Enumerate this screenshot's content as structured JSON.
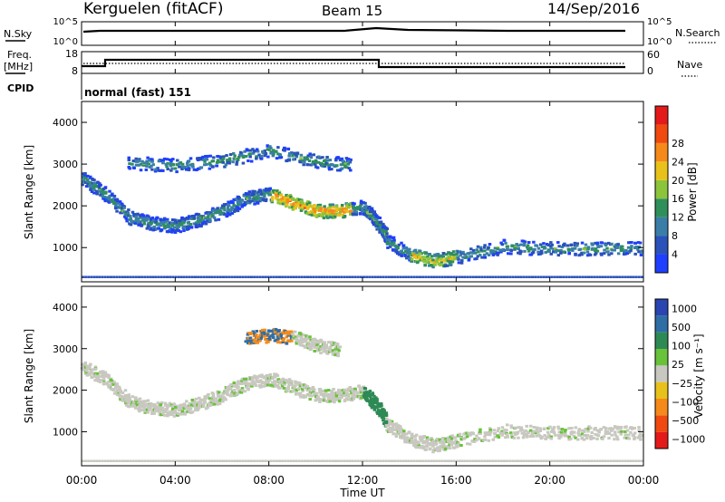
{
  "header": {
    "site": "Kerguelen (fitACF)",
    "beam": "Beam 15",
    "date": "14/Sep/2016"
  },
  "top_panels": {
    "nsky": {
      "label": "N.Sky",
      "tick_top": "10^5",
      "tick_bottom": "10^0",
      "right_label": "N.Search",
      "right_tick_top": "10^5",
      "right_tick_bottom": "10^0"
    },
    "freq": {
      "label_line1": "Freq.",
      "label_line2": "[MHz]",
      "tick_top": "18",
      "tick_bottom": "8",
      "right_label": "Nave",
      "right_tick_top": "60",
      "right_tick_bottom": "0"
    },
    "cpid": {
      "label": "CPID",
      "mode": "normal (fast) 151"
    }
  },
  "x_axis": {
    "ticks": [
      "00:00",
      "04:00",
      "08:00",
      "12:00",
      "16:00",
      "20:00",
      "00:00"
    ],
    "label": "Time UT"
  },
  "chart_data": [
    {
      "type": "heatmap",
      "ylabel": "Slant Range [km]",
      "yticks": [
        "1000",
        "2000",
        "3000",
        "4000"
      ],
      "colorbar": {
        "label": "Power [dB]",
        "ticks": [
          "4",
          "8",
          "12",
          "16",
          "20",
          "24",
          "28"
        ],
        "colors": [
          "#1f3fff",
          "#2a52b8",
          "#3a7ea8",
          "#2f8f5a",
          "#8cc43c",
          "#e8c21a",
          "#f58a1a",
          "#f04a10",
          "#e41a1a"
        ]
      },
      "bands": [
        {
          "x": [
            0.0,
            1.0,
            2.0,
            3.0,
            4.0,
            5.0,
            6.0,
            7.0,
            8.0,
            9.0,
            10.0,
            11.0,
            12.0,
            12.5,
            13.0
          ],
          "y": [
            2700,
            2300,
            1750,
            1600,
            1550,
            1700,
            1900,
            2200,
            2300,
            2100,
            1900,
            1900,
            2000,
            1700,
            1300
          ]
        },
        {
          "x": [
            2.0,
            4.0,
            6.0,
            8.0,
            10.0,
            11.5
          ],
          "y": [
            3050,
            3000,
            3100,
            3350,
            3100,
            3000
          ]
        },
        {
          "x": [
            13.0,
            14.0,
            15.0,
            16.0,
            18.0,
            20.0,
            22.0,
            24.0
          ],
          "y": [
            1200,
            850,
            700,
            800,
            1050,
            1000,
            1000,
            1000
          ]
        }
      ],
      "time_range_hours": [
        0,
        24
      ],
      "range_km": [
        180,
        4500
      ]
    },
    {
      "type": "heatmap",
      "ylabel": "Slant Range [km]",
      "yticks": [
        "1000",
        "2000",
        "3000",
        "4000"
      ],
      "colorbar": {
        "label": "Velocity [m s⁻¹]",
        "ticks": [
          "1000",
          "500",
          "100",
          "25",
          "−25",
          "−100",
          "−500",
          "−1000"
        ],
        "colors": [
          "#2a45b0",
          "#2e6ea5",
          "#2e8a55",
          "#68c23a",
          "#c8c8c0",
          "#e8c21a",
          "#f58a1a",
          "#f04a10",
          "#e41a1a"
        ]
      },
      "bands": [
        {
          "x": [
            0.0,
            1.0,
            2.0,
            3.0,
            4.0,
            5.0,
            6.0,
            7.0,
            8.0,
            9.0,
            10.0,
            11.0,
            12.0,
            12.5,
            13.0
          ],
          "y": [
            2600,
            2300,
            1750,
            1600,
            1550,
            1700,
            1900,
            2200,
            2300,
            2100,
            1900,
            1900,
            2000,
            1700,
            1300
          ]
        },
        {
          "x": [
            7.0,
            8.0,
            9.0,
            10.0,
            11.0
          ],
          "y": [
            3300,
            3350,
            3300,
            3100,
            3000
          ]
        },
        {
          "x": [
            13.0,
            14.0,
            15.0,
            16.0,
            18.0,
            20.0,
            22.0,
            24.0
          ],
          "y": [
            1200,
            850,
            700,
            800,
            1050,
            1000,
            1000,
            1000
          ]
        }
      ],
      "time_range_hours": [
        0,
        24
      ],
      "range_km": [
        180,
        4500
      ]
    }
  ]
}
